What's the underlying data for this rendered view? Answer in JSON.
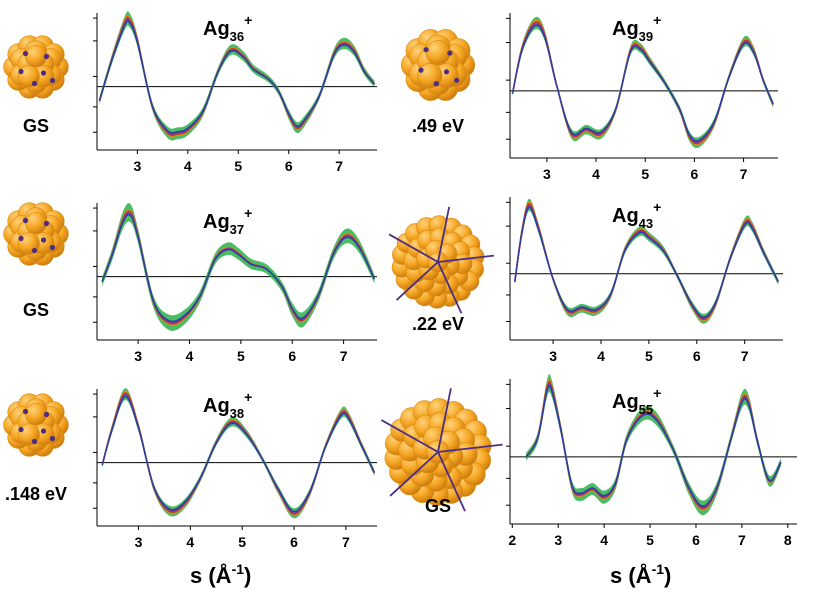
{
  "figure": {
    "xlabel_left": "s  (Å",
    "xlabel_right": "s  (Å",
    "xlabel_exp": "-1",
    "xlabel_close": ")"
  },
  "colors": {
    "band": "#2bb04a",
    "cluster": "#f5a623",
    "cluster_dark": "#d98a12",
    "dot": "#4b2e83",
    "line_blue": "#2b3f9e",
    "line_red": "#c0392b",
    "line_orange": "#e08a1a",
    "line_purple": "#7a3aa8",
    "zero": "#000000"
  },
  "chart_data": [
    {
      "type": "line",
      "title": "Ag",
      "title_sub": "36",
      "title_sup": "+",
      "label": "GS",
      "structure_icon": "sphere-cluster-icon",
      "xlim": [
        2.2,
        7.75
      ],
      "xticks": [
        3,
        4,
        5,
        6,
        7
      ],
      "x": [
        2.25,
        2.5,
        2.75,
        2.85,
        3.0,
        3.3,
        3.6,
        3.8,
        4.0,
        4.3,
        4.6,
        4.85,
        5.1,
        5.3,
        5.6,
        5.8,
        6.0,
        6.15,
        6.3,
        6.6,
        6.9,
        7.1,
        7.3,
        7.5,
        7.7
      ],
      "series": [
        {
          "values": [
            -0.28,
            0.55,
            1.25,
            1.3,
            0.9,
            -0.4,
            -0.9,
            -0.92,
            -0.85,
            -0.5,
            0.3,
            0.72,
            0.6,
            0.35,
            0.15,
            -0.1,
            -0.55,
            -0.8,
            -0.7,
            -0.2,
            0.65,
            0.85,
            0.7,
            0.3,
            0.05
          ]
        }
      ],
      "band_halfwidth": 0.06
    },
    {
      "type": "line",
      "title": "Ag",
      "title_sub": "39",
      "title_sup": "+",
      "label": ".49 eV",
      "structure_icon": "sphere-cluster-icon",
      "xlim": [
        2.25,
        7.7
      ],
      "xticks": [
        3,
        4,
        5,
        6,
        7
      ],
      "x": [
        2.3,
        2.5,
        2.75,
        2.95,
        3.2,
        3.5,
        3.8,
        4.1,
        4.4,
        4.7,
        4.9,
        5.1,
        5.4,
        5.7,
        5.9,
        6.1,
        6.4,
        6.7,
        7.0,
        7.2,
        7.4,
        7.6
      ],
      "series": [
        {
          "values": [
            -0.05,
            0.8,
            1.25,
            1.05,
            0.1,
            -0.8,
            -0.72,
            -0.8,
            -0.35,
            0.75,
            0.8,
            0.55,
            0.15,
            -0.35,
            -0.85,
            -0.95,
            -0.6,
            0.25,
            0.9,
            0.75,
            0.2,
            -0.25
          ]
        }
      ],
      "band_halfwidth": 0.05
    },
    {
      "type": "line",
      "title": "Ag",
      "title_sub": "37",
      "title_sup": "+",
      "label": "GS",
      "structure_icon": "sphere-cluster-icon",
      "xlim": [
        2.2,
        7.65
      ],
      "xticks": [
        3,
        4,
        5,
        6,
        7
      ],
      "x": [
        2.3,
        2.5,
        2.7,
        2.85,
        3.0,
        3.3,
        3.6,
        3.9,
        4.2,
        4.5,
        4.75,
        4.95,
        5.2,
        5.5,
        5.8,
        6.0,
        6.2,
        6.5,
        6.8,
        7.05,
        7.3,
        7.6
      ],
      "series": [
        {
          "values": [
            -0.1,
            0.45,
            1.1,
            1.25,
            0.8,
            -0.5,
            -0.9,
            -0.8,
            -0.4,
            0.35,
            0.55,
            0.45,
            0.25,
            0.15,
            -0.2,
            -0.65,
            -0.85,
            -0.4,
            0.45,
            0.8,
            0.6,
            -0.05
          ]
        }
      ],
      "band_halfwidth": 0.08
    },
    {
      "type": "line",
      "title": "Ag",
      "title_sub": "43",
      "title_sup": "+",
      "label": ".22 eV",
      "structure_icon": "icosahedral-cluster-icon",
      "xlim": [
        2.1,
        7.8
      ],
      "xticks": [
        3,
        4,
        5,
        6,
        7
      ],
      "x": [
        2.2,
        2.35,
        2.5,
        2.7,
        3.0,
        3.3,
        3.6,
        3.9,
        4.2,
        4.5,
        4.8,
        5.0,
        5.3,
        5.6,
        5.9,
        6.15,
        6.4,
        6.7,
        7.0,
        7.15,
        7.4,
        7.7
      ],
      "series": [
        {
          "values": [
            -0.15,
            0.8,
            1.3,
            0.85,
            -0.1,
            -0.7,
            -0.65,
            -0.7,
            -0.4,
            0.45,
            0.8,
            0.7,
            0.45,
            -0.05,
            -0.6,
            -0.85,
            -0.55,
            0.3,
            0.95,
            0.9,
            0.4,
            -0.15
          ]
        }
      ],
      "band_halfwidth": 0.05
    },
    {
      "type": "line",
      "title": "Ag",
      "title_sub": "38",
      "title_sup": "+",
      "label": ".148 eV",
      "structure_icon": "sphere-cluster-icon",
      "xlim": [
        2.2,
        7.6
      ],
      "xticks": [
        3,
        4,
        5,
        6,
        7
      ],
      "x": [
        2.3,
        2.5,
        2.75,
        3.0,
        3.3,
        3.6,
        3.9,
        4.2,
        4.5,
        4.8,
        5.1,
        5.4,
        5.7,
        6.0,
        6.3,
        6.6,
        6.9,
        7.05,
        7.3,
        7.55
      ],
      "series": [
        {
          "values": [
            -0.05,
            0.7,
            1.35,
            0.7,
            -0.5,
            -0.95,
            -0.8,
            -0.3,
            0.4,
            0.8,
            0.55,
            0.05,
            -0.55,
            -1.0,
            -0.6,
            0.3,
            0.95,
            0.9,
            0.35,
            -0.2
          ]
        }
      ],
      "band_halfwidth": 0.05
    },
    {
      "type": "line",
      "title": "Ag",
      "title_sub": "55",
      "title_sup": "+",
      "label": "GS",
      "structure_icon": "icosahedral-cluster-icon",
      "xlim": [
        1.95,
        8.2
      ],
      "xticks": [
        2,
        3,
        4,
        5,
        6,
        7,
        8
      ],
      "x": [
        2.3,
        2.55,
        2.75,
        2.85,
        3.05,
        3.3,
        3.5,
        3.75,
        4.0,
        4.25,
        4.5,
        4.85,
        5.15,
        5.5,
        5.85,
        6.15,
        6.45,
        6.75,
        7.0,
        7.15,
        7.35,
        7.6,
        7.85
      ],
      "series": [
        {
          "values": [
            0.0,
            0.35,
            1.25,
            1.3,
            0.55,
            -0.55,
            -0.7,
            -0.6,
            -0.75,
            -0.5,
            0.35,
            0.8,
            0.7,
            0.15,
            -0.6,
            -0.95,
            -0.6,
            0.3,
            1.05,
            1.0,
            0.25,
            -0.45,
            -0.1
          ]
        }
      ],
      "band_halfwidth": 0.07
    }
  ]
}
